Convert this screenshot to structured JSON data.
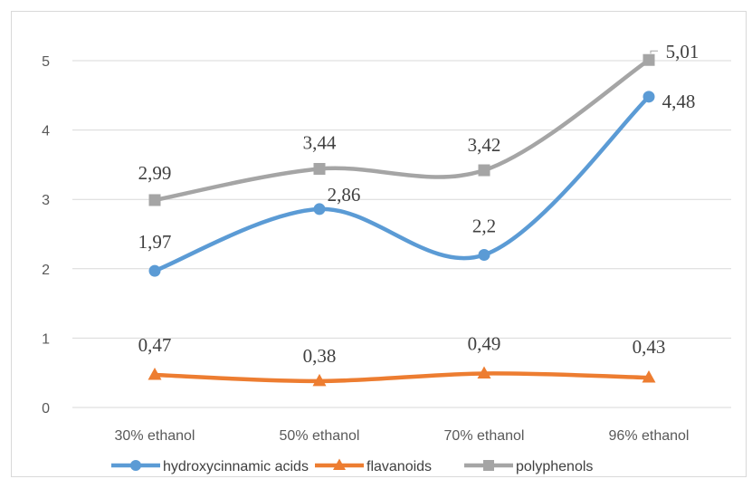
{
  "chart_data": {
    "type": "line",
    "title": "",
    "xlabel": "",
    "ylabel": "",
    "categories": [
      "30% ethanol",
      "50% ethanol",
      "70% ethanol",
      "96% ethanol"
    ],
    "ylim": [
      0,
      5
    ],
    "yticks": [
      0,
      1,
      2,
      3,
      4,
      5
    ],
    "grid": true,
    "smooth": true,
    "legend_position": "bottom",
    "series": [
      {
        "name": "hydroxycinnamic acids",
        "color": "#5b9bd5",
        "marker": "circle",
        "values": [
          1.97,
          2.86,
          2.2,
          4.48
        ],
        "labels": [
          "1,97",
          "2,86",
          "2,2",
          "4,48"
        ]
      },
      {
        "name": "flavanoids",
        "color": "#ed7d31",
        "marker": "triangle",
        "values": [
          0.47,
          0.38,
          0.49,
          0.43
        ],
        "labels": [
          "0,47",
          "0,38",
          "0,49",
          "0,43"
        ]
      },
      {
        "name": "polyphenols",
        "color": "#a5a5a5",
        "marker": "square",
        "values": [
          2.99,
          3.44,
          3.42,
          5.01
        ],
        "labels": [
          "2,99",
          "3,44",
          "3,42",
          "5,01"
        ]
      }
    ]
  }
}
